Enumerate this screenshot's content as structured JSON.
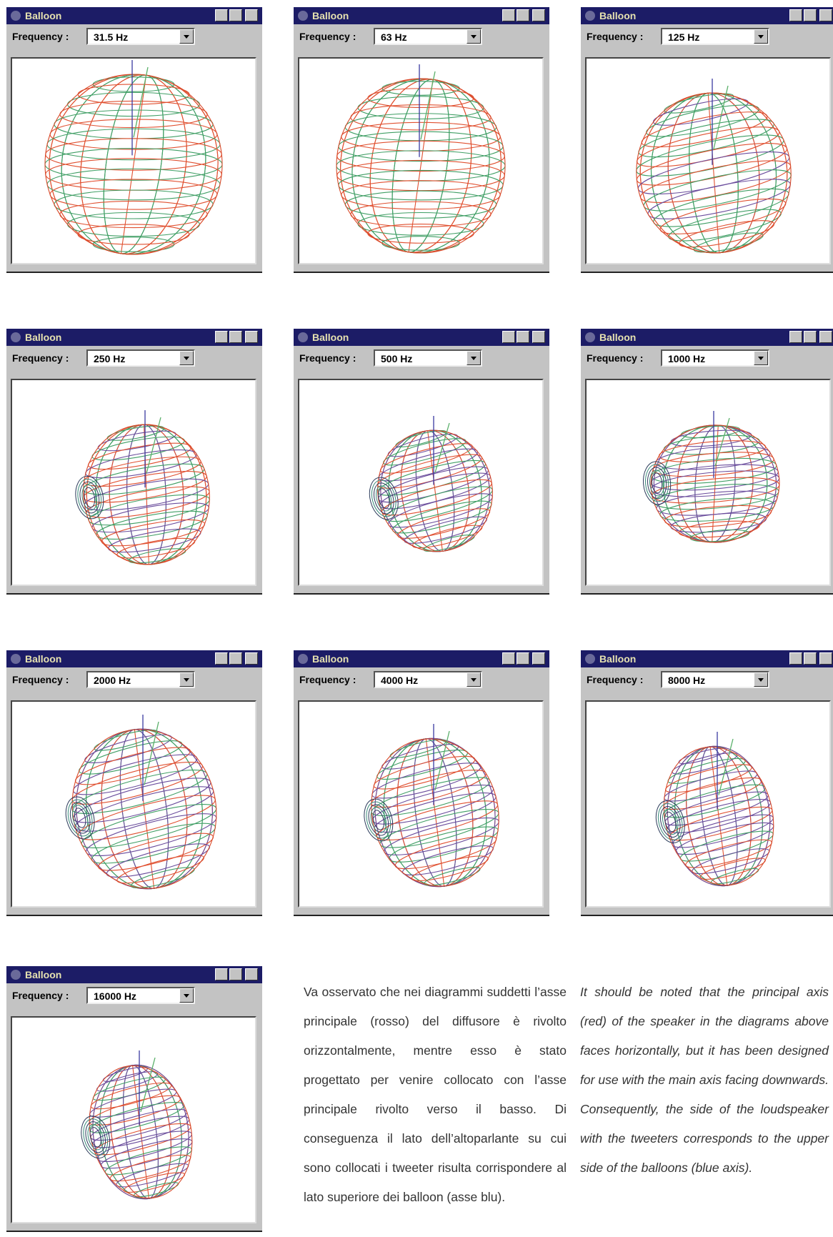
{
  "windows": [
    {
      "title": "Balloon",
      "label": "Frequency :",
      "frequency": "31.5 Hz"
    },
    {
      "title": "Balloon",
      "label": "Frequency :",
      "frequency": "63 Hz"
    },
    {
      "title": "Balloon",
      "label": "Frequency :",
      "frequency": "125 Hz"
    },
    {
      "title": "Balloon",
      "label": "Frequency :",
      "frequency": "250 Hz"
    },
    {
      "title": "Balloon",
      "label": "Frequency :",
      "frequency": "500 Hz"
    },
    {
      "title": "Balloon",
      "label": "Frequency :",
      "frequency": "1000 Hz"
    },
    {
      "title": "Balloon",
      "label": "Frequency :",
      "frequency": "2000 Hz"
    },
    {
      "title": "Balloon",
      "label": "Frequency :",
      "frequency": "4000 Hz"
    },
    {
      "title": "Balloon",
      "label": "Frequency :",
      "frequency": "8000 Hz"
    },
    {
      "title": "Balloon",
      "label": "Frequency :",
      "frequency": "16000 Hz"
    }
  ],
  "text": {
    "italian": "Va osservato che nei diagrammi suddetti l’asse principale (rosso) del diffusore è rivolto orizzontalmente, mentre esso è stato progettato per venire collocato con l’asse principale rivolto verso il basso. Di conseguenza il lato dell’altoparlante su cui sono collocati i tweeter risulta corrispondere al lato superiore dei balloon (asse blu).",
    "english": "It should be noted that the principal axis (red) of the speaker in the diagrams above faces horizontally, but it has been designed for use with the main axis facing downwards. Consequently, the side of the loudspeaker with the tweeters corresponds to the upper side of the balloons (blue axis)."
  }
}
